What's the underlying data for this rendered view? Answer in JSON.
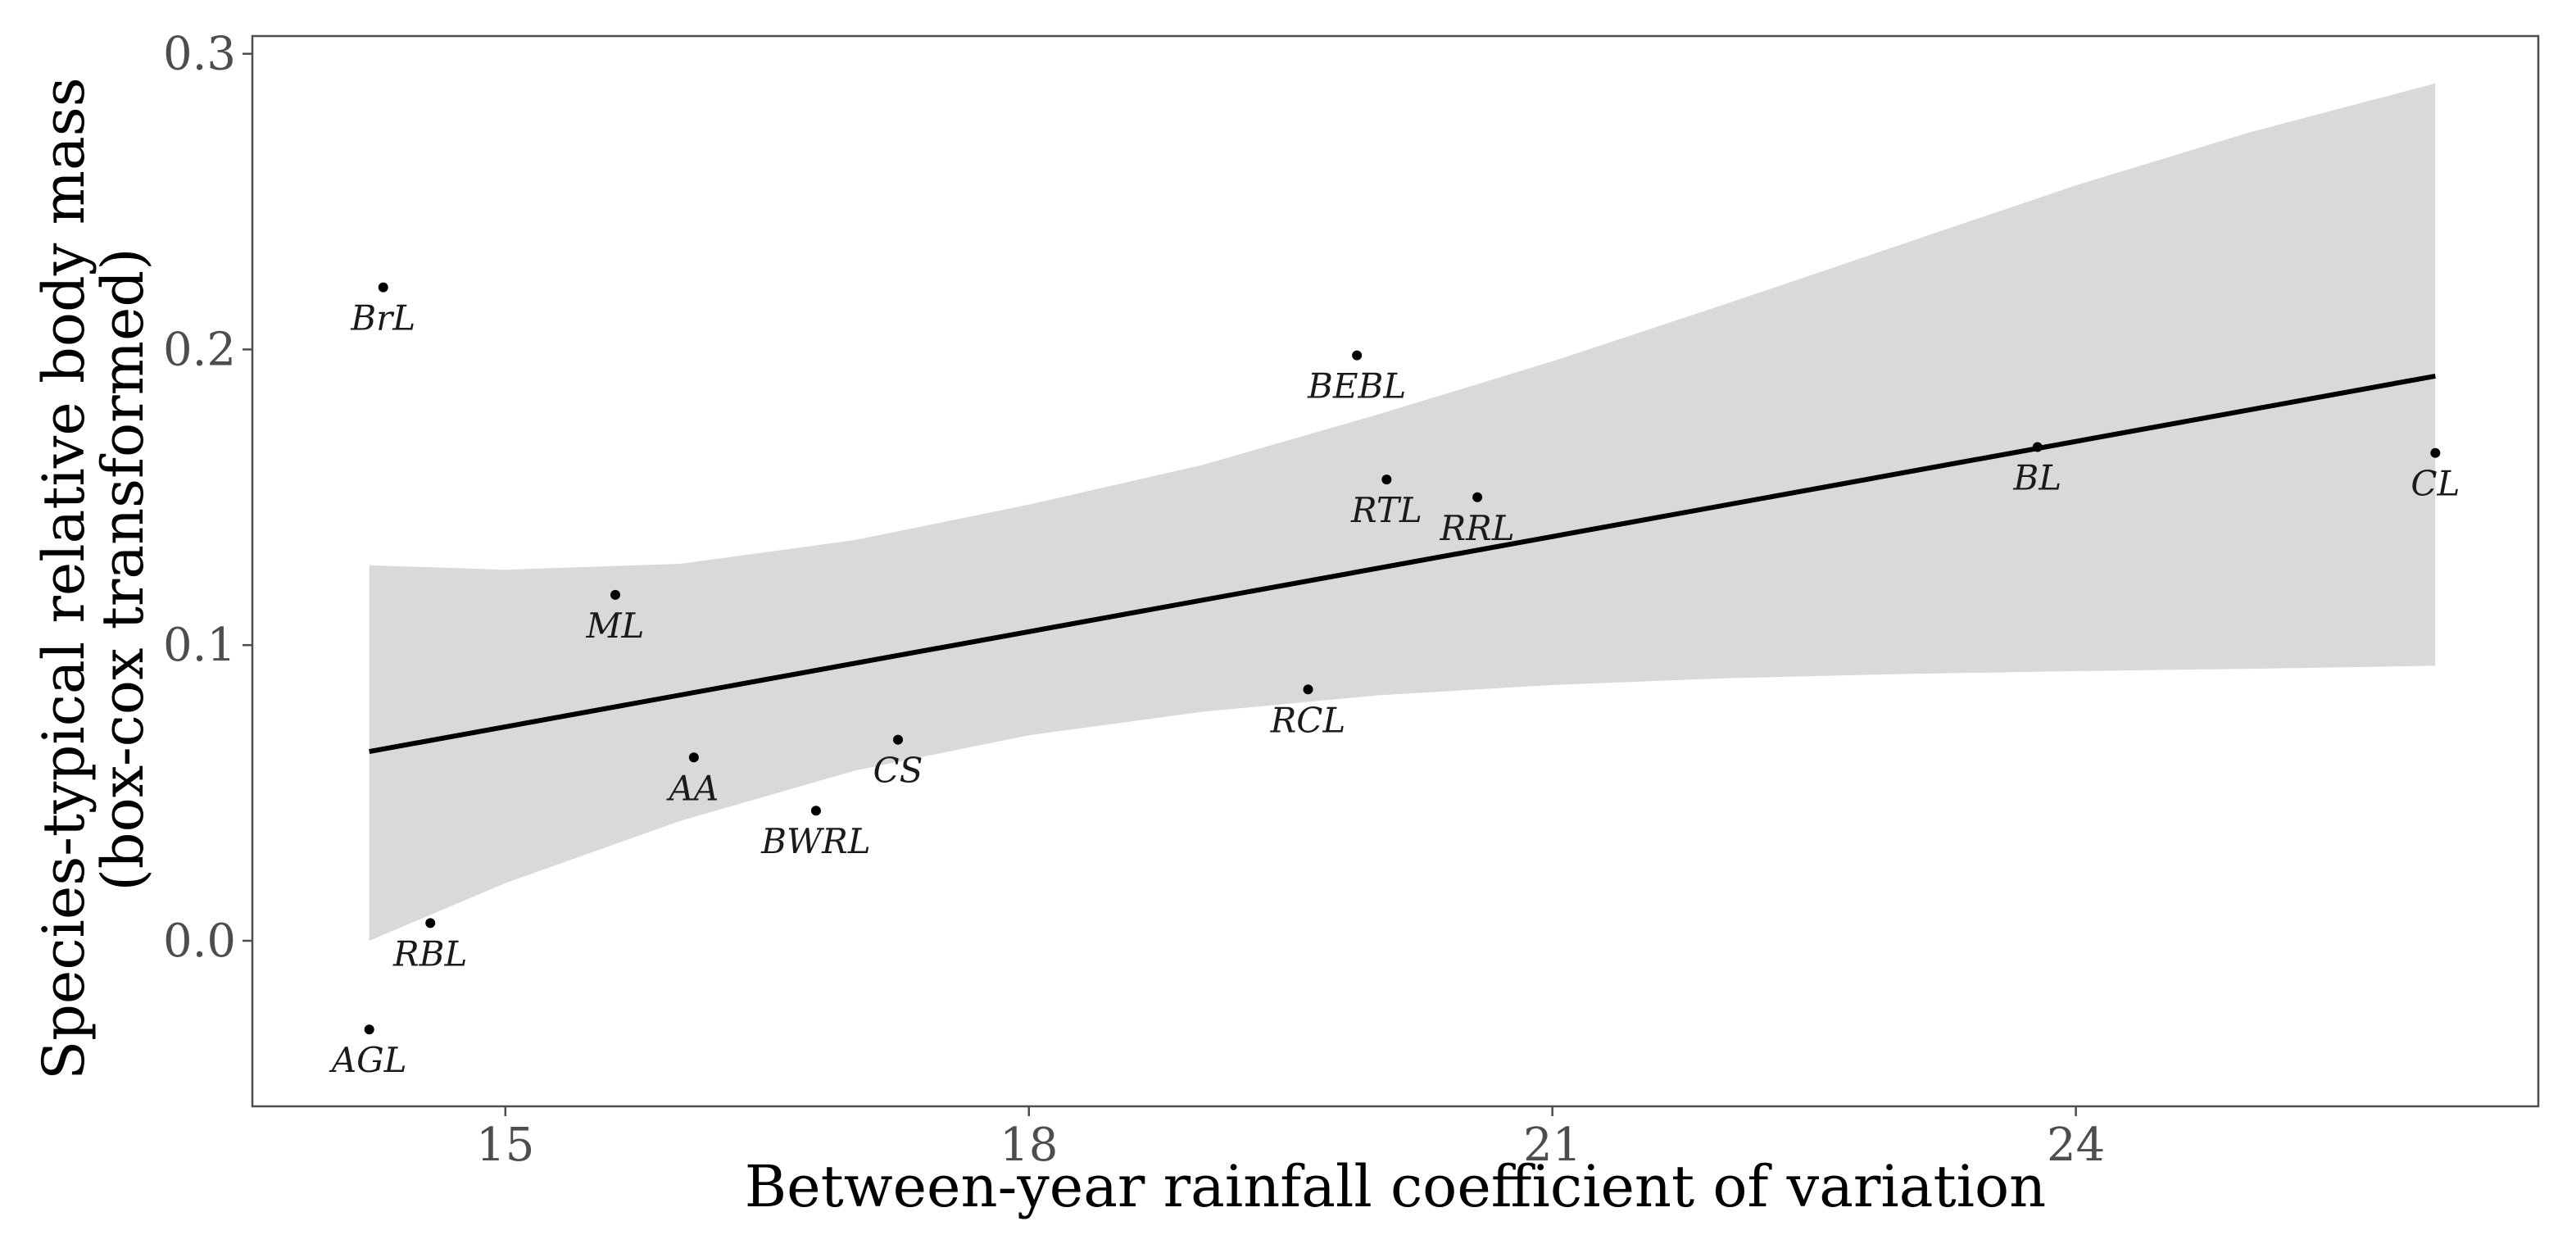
{
  "chart_data": {
    "type": "scatter",
    "title": "",
    "xlabel": "Between-year rainfall coefficient of variation",
    "ylabel": [
      "Species-typical relative body mass",
      "(box-cox transformed)"
    ],
    "xlim": [
      13.55,
      26.65
    ],
    "ylim": [
      -0.056,
      0.306
    ],
    "x_ticks": [
      15,
      18,
      21,
      24
    ],
    "x_tick_labels": [
      "15",
      "18",
      "21",
      "24"
    ],
    "y_ticks": [
      0.0,
      0.1,
      0.2,
      0.3
    ],
    "y_tick_labels": [
      "0.0",
      "0.1",
      "0.2",
      "0.3"
    ],
    "grid": false,
    "points": [
      {
        "label": "BrL",
        "x": 14.3,
        "y": 0.221
      },
      {
        "label": "AGL",
        "x": 14.22,
        "y": -0.03
      },
      {
        "label": "RBL",
        "x": 14.57,
        "y": 0.006
      },
      {
        "label": "ML",
        "x": 15.63,
        "y": 0.117
      },
      {
        "label": "AA",
        "x": 16.08,
        "y": 0.062
      },
      {
        "label": "BWRL",
        "x": 16.78,
        "y": 0.044
      },
      {
        "label": "CS",
        "x": 17.25,
        "y": 0.068
      },
      {
        "label": "RCL",
        "x": 19.6,
        "y": 0.085
      },
      {
        "label": "BEBL",
        "x": 19.88,
        "y": 0.198
      },
      {
        "label": "RTL",
        "x": 20.05,
        "y": 0.156
      },
      {
        "label": "RRL",
        "x": 20.57,
        "y": 0.15
      },
      {
        "label": "BL",
        "x": 23.78,
        "y": 0.167
      },
      {
        "label": "CL",
        "x": 26.06,
        "y": 0.165
      }
    ],
    "fit_line": {
      "x": [
        14.22,
        26.06
      ],
      "y": [
        0.064,
        0.191
      ]
    },
    "confidence_band": {
      "x": [
        14.22,
        15.0,
        16.0,
        17.0,
        18.0,
        19.0,
        20.0,
        21.0,
        22.0,
        23.0,
        24.0,
        25.0,
        26.06
      ],
      "lower": [
        0.0,
        0.0195,
        0.0405,
        0.0575,
        0.0695,
        0.0775,
        0.083,
        0.0865,
        0.0888,
        0.0902,
        0.0912,
        0.092,
        0.093
      ],
      "upper": [
        0.127,
        0.1255,
        0.1275,
        0.1355,
        0.1475,
        0.161,
        0.178,
        0.196,
        0.2155,
        0.2355,
        0.2555,
        0.2735,
        0.29
      ]
    },
    "colors": {
      "points": "#000000",
      "line": "#000000",
      "band": "#d9d9d9",
      "frame": "#4d4d4d"
    }
  }
}
